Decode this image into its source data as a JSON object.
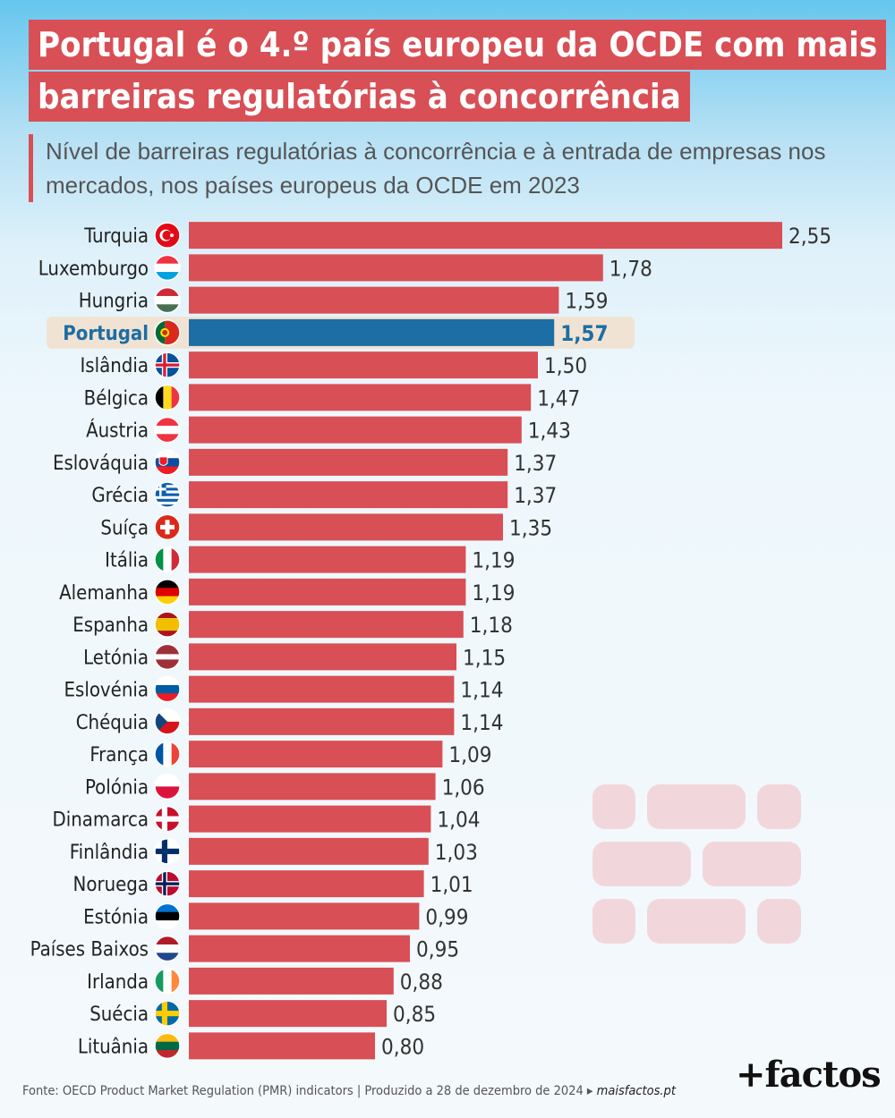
{
  "title_line1": "Portugal é o 4.º país europeu da OCDE com mais",
  "title_line2": "barreiras regulatórias à concorrência",
  "subtitle": "Nível de barreiras regulatórias à concorrência e à entrada de empresas nos mercados, nos países europeus da OCDE em 2023",
  "colors": {
    "bar": "#d84f55",
    "highlight_bar": "#1c6ea4",
    "highlight_bg": "#f1e3d3",
    "title_bg": "#d84f55"
  },
  "chart_data": {
    "type": "bar",
    "orientation": "horizontal",
    "highlight": "Portugal",
    "categories": [
      "Turquia",
      "Luxemburgo",
      "Hungria",
      "Portugal",
      "Islândia",
      "Bélgica",
      "Áustria",
      "Eslováquia",
      "Grécia",
      "Suíça",
      "Itália",
      "Alemanha",
      "Espanha",
      "Letónia",
      "Eslovénia",
      "Chéquia",
      "França",
      "Polónia",
      "Dinamarca",
      "Finlândia",
      "Noruega",
      "Estónia",
      "Países Baixos",
      "Irlanda",
      "Suécia",
      "Lituânia"
    ],
    "values": [
      2.55,
      1.78,
      1.59,
      1.57,
      1.5,
      1.47,
      1.43,
      1.37,
      1.37,
      1.35,
      1.19,
      1.19,
      1.18,
      1.15,
      1.14,
      1.14,
      1.09,
      1.06,
      1.04,
      1.03,
      1.01,
      0.99,
      0.95,
      0.88,
      0.85,
      0.8
    ],
    "value_labels": [
      "2,55",
      "1,78",
      "1,59",
      "1,57",
      "1,50",
      "1,47",
      "1,43",
      "1,37",
      "1,37",
      "1,35",
      "1,19",
      "1,19",
      "1,18",
      "1,15",
      "1,14",
      "1,14",
      "1,09",
      "1,06",
      "1,04",
      "1,03",
      "1,01",
      "0,99",
      "0,95",
      "0,88",
      "0,85",
      "0,80"
    ],
    "flags": [
      "turkey-flag",
      "luxembourg-flag",
      "hungary-flag",
      "portugal-flag",
      "iceland-flag",
      "belgium-flag",
      "austria-flag",
      "slovakia-flag",
      "greece-flag",
      "switzerland-flag",
      "italy-flag",
      "germany-flag",
      "spain-flag",
      "latvia-flag",
      "slovenia-flag",
      "czechia-flag",
      "france-flag",
      "poland-flag",
      "denmark-flag",
      "finland-flag",
      "norway-flag",
      "estonia-flag",
      "netherlands-flag",
      "ireland-flag",
      "sweden-flag",
      "lithuania-flag"
    ],
    "xlim": [
      0,
      2.55
    ]
  },
  "footer": {
    "source": "Fonte: OECD Product Market Regulation (PMR) indicators  |  Produzido a 28 de dezembro de 2024 ▸ ",
    "site": "maisfactos.pt",
    "logo": "+factos"
  }
}
